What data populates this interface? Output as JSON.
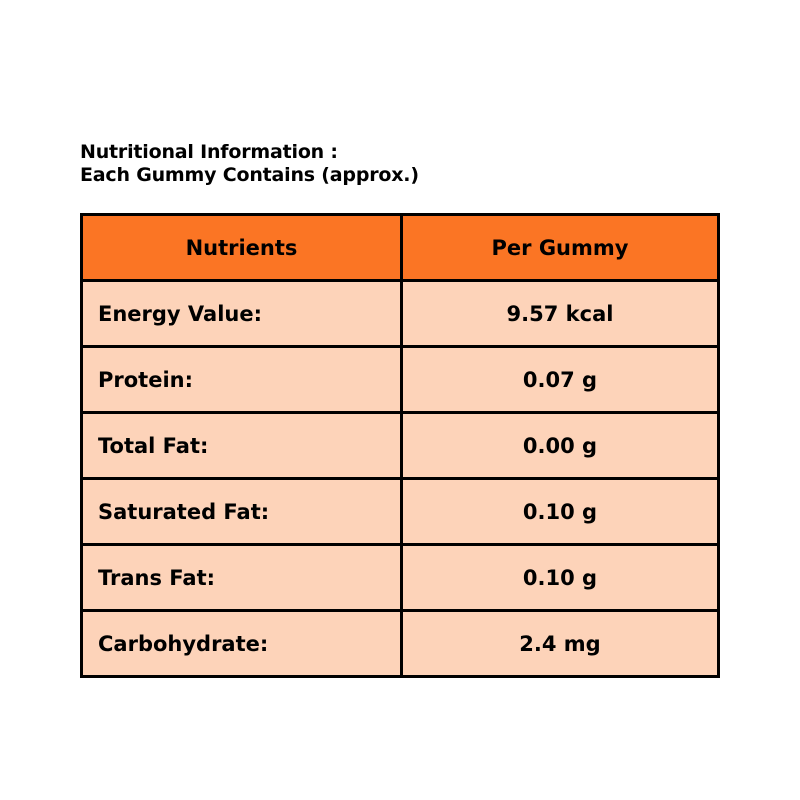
{
  "title": {
    "line1": "Nutritional Information :",
    "line2": "Each Gummy Contains (approx.)"
  },
  "table": {
    "headers": [
      "Nutrients",
      "Per Gummy"
    ],
    "rows": [
      {
        "nutrient": "Energy Value:",
        "value": "9.57 kcal"
      },
      {
        "nutrient": "Protein:",
        "value": "0.07 g"
      },
      {
        "nutrient": "Total Fat:",
        "value": "0.00 g"
      },
      {
        "nutrient": "Saturated Fat:",
        "value": "0.10 g"
      },
      {
        "nutrient": "Trans Fat:",
        "value": "0.10 g"
      },
      {
        "nutrient": "Carbohydrate:",
        "value": "2.4 mg"
      }
    ]
  },
  "colors": {
    "header": "#fb7524",
    "row": "#fdd3b9",
    "border": "#000000"
  }
}
